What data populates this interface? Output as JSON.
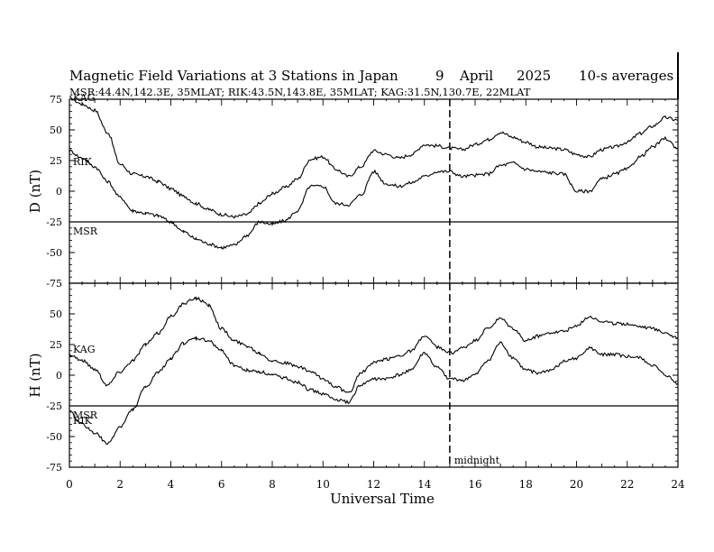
{
  "figure": {
    "title": "Magnetic Field Variations at 3 Stations in Japan",
    "date_day": "9",
    "date_month": "April",
    "date_year": "2025",
    "averaging": "10-s averages",
    "stations_line": "MSR:44.4N,142.3E, 35MLAT;  RIK:43.5N,143.8E, 35MLAT;  KAG:31.5N,130.7E, 22MLAT",
    "xlabel": "Universal Time",
    "midnight_label": "midnight",
    "midnight_ut": 15
  },
  "chart_data": [
    {
      "type": "line",
      "panel": "D",
      "ylabel": "D (nT)",
      "xlim": [
        0,
        24
      ],
      "ylim": [
        -75,
        75
      ],
      "yticks": [
        75,
        50,
        25,
        0,
        -25,
        -50,
        -75
      ],
      "xticks": [
        0,
        2,
        4,
        6,
        8,
        10,
        12,
        14,
        16,
        18,
        20,
        22,
        24
      ],
      "series": [
        {
          "name": "KAG",
          "x": [
            0,
            0.5,
            1,
            1.5,
            2,
            2.5,
            3,
            3.5,
            4,
            4.5,
            5,
            5.5,
            6,
            6.5,
            7,
            7.5,
            8,
            8.5,
            9,
            9.5,
            10,
            10.5,
            11,
            11.5,
            12,
            12.5,
            13,
            13.5,
            14,
            14.5,
            15,
            15.5,
            16,
            16.5,
            17,
            17.5,
            18,
            18.5,
            19,
            19.5,
            20,
            20.5,
            21,
            21.5,
            22,
            22.5,
            23,
            23.5,
            24
          ],
          "y": [
            76,
            71,
            66,
            48,
            22,
            14,
            12,
            8,
            2,
            -4,
            -10,
            -15,
            -19,
            -21,
            -19,
            -10,
            -2,
            3,
            10,
            26,
            28,
            18,
            12,
            20,
            33,
            30,
            27,
            30,
            38,
            37,
            35,
            34,
            38,
            42,
            48,
            44,
            40,
            36,
            35,
            34,
            30,
            28,
            34,
            36,
            40,
            47,
            53,
            60,
            58
          ]
        },
        {
          "name": "RIK",
          "x": [
            0,
            0.5,
            1,
            1.5,
            2,
            2.5,
            3,
            3.5,
            4,
            4.5,
            5,
            5.5,
            6,
            6.5,
            7,
            7.5,
            8,
            8.5,
            9,
            9.5,
            10,
            10.5,
            11,
            11.5,
            12,
            12.5,
            13,
            13.5,
            14,
            14.5,
            15,
            15.5,
            16,
            16.5,
            17,
            17.5,
            18,
            18.5,
            19,
            19.5,
            20,
            20.5,
            21,
            21.5,
            22,
            22.5,
            23,
            23.5,
            24
          ],
          "y": [
            33,
            27,
            20,
            8,
            -5,
            -16,
            -18,
            -20,
            -25,
            -33,
            -39,
            -43,
            -46,
            -44,
            -36,
            -25,
            -27,
            -24,
            -16,
            4,
            4,
            -10,
            -11,
            -3,
            16,
            6,
            4,
            7,
            12,
            16,
            16,
            12,
            13,
            14,
            21,
            23,
            18,
            16,
            15,
            14,
            0,
            0,
            10,
            14,
            18,
            28,
            36,
            43,
            35
          ]
        }
      ],
      "baseline_label": "MSR",
      "baseline_value": -25
    },
    {
      "type": "line",
      "panel": "H",
      "ylabel": "H (nT)",
      "xlim": [
        0,
        24
      ],
      "ylim": [
        -75,
        75
      ],
      "yticks": [
        75,
        50,
        25,
        0,
        -25,
        -50,
        -75
      ],
      "xticks": [
        0,
        2,
        4,
        6,
        8,
        10,
        12,
        14,
        16,
        18,
        20,
        22,
        24
      ],
      "series": [
        {
          "name": "KAG",
          "x": [
            0,
            0.5,
            1,
            1.5,
            2,
            2.5,
            3,
            3.5,
            4,
            4.5,
            5,
            5.5,
            6,
            6.5,
            7,
            7.5,
            8,
            8.5,
            9,
            9.5,
            10,
            10.5,
            11,
            11.5,
            12,
            12.5,
            13,
            13.5,
            14,
            14.5,
            15,
            15.5,
            16,
            16.5,
            17,
            17.5,
            18,
            18.5,
            19,
            19.5,
            20,
            20.5,
            21,
            21.5,
            22,
            22.5,
            23,
            23.5,
            24
          ],
          "y": [
            17,
            12,
            5,
            -8,
            3,
            12,
            25,
            34,
            48,
            58,
            63,
            57,
            38,
            28,
            24,
            18,
            12,
            10,
            7,
            3,
            -3,
            -9,
            -15,
            2,
            10,
            13,
            16,
            20,
            32,
            23,
            18,
            22,
            28,
            38,
            46,
            38,
            28,
            32,
            35,
            36,
            40,
            48,
            44,
            42,
            42,
            40,
            38,
            35,
            30
          ]
        },
        {
          "name": "RIK",
          "x": [
            0,
            0.5,
            1,
            1.5,
            2,
            2.5,
            3,
            3.5,
            4,
            4.5,
            5,
            5.5,
            6,
            6.5,
            7,
            7.5,
            8,
            8.5,
            9,
            9.5,
            10,
            10.5,
            11,
            11.5,
            12,
            12.5,
            13,
            13.5,
            14,
            14.5,
            15,
            15.5,
            16,
            16.5,
            17,
            17.5,
            18,
            18.5,
            19,
            19.5,
            20,
            20.5,
            21,
            21.5,
            22,
            22.5,
            23,
            23.5,
            24
          ],
          "y": [
            -30,
            -40,
            -47,
            -56,
            -42,
            -28,
            -10,
            2,
            14,
            26,
            30,
            28,
            20,
            8,
            4,
            3,
            0,
            -2,
            -6,
            -12,
            -15,
            -20,
            -22,
            -8,
            -3,
            -3,
            0,
            5,
            18,
            6,
            -3,
            -4,
            0,
            12,
            26,
            14,
            4,
            2,
            4,
            11,
            14,
            22,
            17,
            17,
            15,
            14,
            8,
            0,
            -7
          ]
        }
      ],
      "baseline_label": "MSR",
      "baseline_value": -25
    }
  ]
}
